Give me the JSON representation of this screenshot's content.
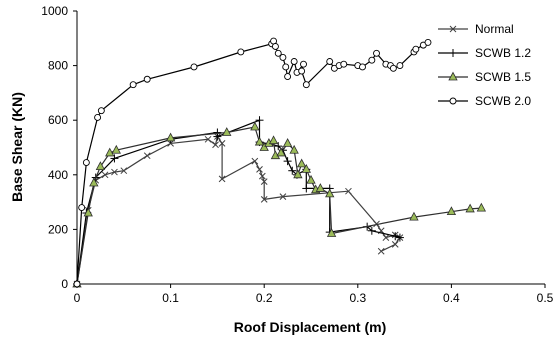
{
  "chart_data": {
    "type": "line",
    "title": "",
    "xlabel": "Roof Displacement (m)",
    "ylabel": "Base Shear (KN)",
    "xlim": [
      0,
      0.5
    ],
    "ylim": [
      0,
      1000
    ],
    "x_ticks": [
      "0",
      "0.1",
      "0.2",
      "0.3",
      "0.4",
      "0.5"
    ],
    "y_ticks": [
      "0",
      "200",
      "400",
      "600",
      "800",
      "1000"
    ],
    "grid": false,
    "legend_position": "right",
    "series": [
      {
        "name": "Normal",
        "marker": "x",
        "color": "#404040",
        "points": [
          [
            0,
            0
          ],
          [
            0.012,
            270
          ],
          [
            0.02,
            380
          ],
          [
            0.03,
            400
          ],
          [
            0.04,
            410
          ],
          [
            0.05,
            415
          ],
          [
            0.075,
            470
          ],
          [
            0.1,
            515
          ],
          [
            0.14,
            530
          ],
          [
            0.148,
            510
          ],
          [
            0.15,
            540
          ],
          [
            0.155,
            515
          ],
          [
            0.155,
            385
          ],
          [
            0.19,
            450
          ],
          [
            0.195,
            420
          ],
          [
            0.198,
            395
          ],
          [
            0.2,
            375
          ],
          [
            0.2,
            310
          ],
          [
            0.22,
            320
          ],
          [
            0.29,
            340
          ],
          [
            0.32,
            220
          ],
          [
            0.325,
            195
          ],
          [
            0.33,
            170
          ],
          [
            0.34,
            180
          ],
          [
            0.345,
            170
          ],
          [
            0.34,
            145
          ],
          [
            0.325,
            120
          ]
        ]
      },
      {
        "name": "SCWB 1.2",
        "marker": "plus",
        "color": "#000000",
        "points": [
          [
            0,
            0
          ],
          [
            0.01,
            260
          ],
          [
            0.02,
            390
          ],
          [
            0.04,
            460
          ],
          [
            0.1,
            530
          ],
          [
            0.15,
            555
          ],
          [
            0.15,
            540
          ],
          [
            0.195,
            600
          ],
          [
            0.195,
            520
          ],
          [
            0.215,
            505
          ],
          [
            0.22,
            490
          ],
          [
            0.225,
            450
          ],
          [
            0.23,
            415
          ],
          [
            0.235,
            400
          ],
          [
            0.245,
            420
          ],
          [
            0.245,
            350
          ],
          [
            0.27,
            350
          ],
          [
            0.27,
            190
          ],
          [
            0.31,
            210
          ],
          [
            0.315,
            195
          ],
          [
            0.34,
            175
          ],
          [
            0.345,
            170
          ]
        ]
      },
      {
        "name": "SCWB 1.5",
        "marker": "triangle",
        "color": "#2f2f2f",
        "fill": "#9bbb59",
        "points": [
          [
            0,
            0
          ],
          [
            0.012,
            260
          ],
          [
            0.018,
            370
          ],
          [
            0.025,
            430
          ],
          [
            0.035,
            480
          ],
          [
            0.042,
            490
          ],
          [
            0.1,
            535
          ],
          [
            0.16,
            555
          ],
          [
            0.19,
            575
          ],
          [
            0.195,
            520
          ],
          [
            0.2,
            500
          ],
          [
            0.205,
            515
          ],
          [
            0.21,
            525
          ],
          [
            0.212,
            470
          ],
          [
            0.218,
            480
          ],
          [
            0.225,
            515
          ],
          [
            0.232,
            490
          ],
          [
            0.236,
            400
          ],
          [
            0.24,
            440
          ],
          [
            0.245,
            420
          ],
          [
            0.25,
            380
          ],
          [
            0.255,
            345
          ],
          [
            0.26,
            350
          ],
          [
            0.27,
            330
          ],
          [
            0.272,
            185
          ],
          [
            0.36,
            245
          ],
          [
            0.4,
            265
          ],
          [
            0.42,
            275
          ],
          [
            0.432,
            278
          ]
        ]
      },
      {
        "name": "SCWB 2.0",
        "marker": "circle",
        "color": "#000000",
        "points": [
          [
            0,
            0
          ],
          [
            0.005,
            280
          ],
          [
            0.01,
            445
          ],
          [
            0.022,
            610
          ],
          [
            0.026,
            635
          ],
          [
            0.06,
            730
          ],
          [
            0.075,
            750
          ],
          [
            0.125,
            795
          ],
          [
            0.175,
            850
          ],
          [
            0.208,
            880
          ],
          [
            0.21,
            890
          ],
          [
            0.212,
            870
          ],
          [
            0.215,
            845
          ],
          [
            0.22,
            830
          ],
          [
            0.223,
            795
          ],
          [
            0.225,
            760
          ],
          [
            0.232,
            815
          ],
          [
            0.235,
            775
          ],
          [
            0.242,
            805
          ],
          [
            0.24,
            780
          ],
          [
            0.245,
            730
          ],
          [
            0.27,
            815
          ],
          [
            0.275,
            790
          ],
          [
            0.28,
            800
          ],
          [
            0.285,
            805
          ],
          [
            0.3,
            800
          ],
          [
            0.305,
            795
          ],
          [
            0.315,
            820
          ],
          [
            0.32,
            845
          ],
          [
            0.33,
            805
          ],
          [
            0.335,
            800
          ],
          [
            0.338,
            790
          ],
          [
            0.345,
            800
          ],
          [
            0.36,
            850
          ],
          [
            0.362,
            860
          ],
          [
            0.37,
            875
          ],
          [
            0.375,
            885
          ]
        ]
      }
    ]
  }
}
